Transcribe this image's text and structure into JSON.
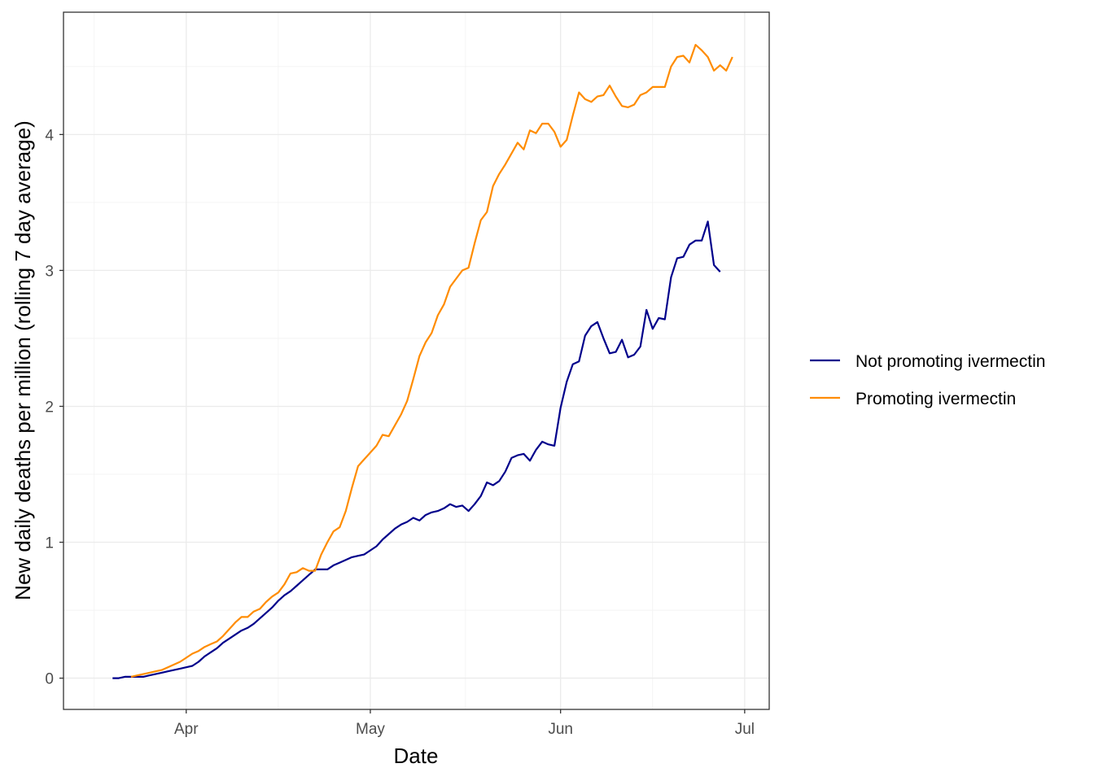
{
  "chart_data": {
    "type": "line",
    "xlabel": "Date",
    "ylabel": "New daily deaths per million (rolling 7 day average)",
    "x_start": "2020-03-20",
    "x_ticks": [
      {
        "label": "Apr",
        "date": "2020-04-01"
      },
      {
        "label": "May",
        "date": "2020-05-01"
      },
      {
        "label": "Jun",
        "date": "2020-06-01"
      },
      {
        "label": "Jul",
        "date": "2020-07-01"
      }
    ],
    "y_ticks": [
      0,
      1,
      2,
      3,
      4
    ],
    "xlim": [
      "2020-03-12",
      "2020-07-05"
    ],
    "ylim": [
      -0.23,
      4.9
    ],
    "grid": true,
    "legend_position": "right",
    "series": [
      {
        "name": "Not promoting ivermectin",
        "color": "#00008b",
        "values": [
          0.0,
          0.0,
          0.01,
          0.01,
          0.01,
          0.01,
          0.02,
          0.03,
          0.04,
          0.05,
          0.06,
          0.07,
          0.08,
          0.09,
          0.12,
          0.16,
          0.19,
          0.22,
          0.26,
          0.29,
          0.32,
          0.35,
          0.37,
          0.4,
          0.44,
          0.48,
          0.52,
          0.57,
          0.61,
          0.64,
          0.68,
          0.72,
          0.76,
          0.8,
          0.8,
          0.8,
          0.83,
          0.85,
          0.87,
          0.89,
          0.9,
          0.91,
          0.94,
          0.97,
          1.02,
          1.06,
          1.1,
          1.13,
          1.15,
          1.18,
          1.16,
          1.2,
          1.22,
          1.23,
          1.25,
          1.28,
          1.26,
          1.27,
          1.23,
          1.28,
          1.34,
          1.44,
          1.42,
          1.45,
          1.52,
          1.62,
          1.64,
          1.65,
          1.6,
          1.68,
          1.74,
          1.72,
          1.71,
          1.99,
          2.18,
          2.31,
          2.33,
          2.52,
          2.59,
          2.62,
          2.5,
          2.39,
          2.4,
          2.49,
          2.36,
          2.38,
          2.44,
          2.71,
          2.57,
          2.65,
          2.64,
          2.95,
          3.09,
          3.1,
          3.19,
          3.22,
          3.22,
          3.36,
          3.04,
          2.99
        ]
      },
      {
        "name": "Promoting ivermectin",
        "color": "#ff8c00",
        "values": [
          null,
          null,
          null,
          0.01,
          0.02,
          0.03,
          0.04,
          0.05,
          0.06,
          0.08,
          0.1,
          0.12,
          0.15,
          0.18,
          0.2,
          0.23,
          0.25,
          0.27,
          0.31,
          0.36,
          0.41,
          0.45,
          0.45,
          0.49,
          0.51,
          0.56,
          0.6,
          0.63,
          0.69,
          0.77,
          0.78,
          0.81,
          0.79,
          0.79,
          0.91,
          1.0,
          1.08,
          1.11,
          1.23,
          1.4,
          1.56,
          1.61,
          1.66,
          1.71,
          1.79,
          1.78,
          1.86,
          1.94,
          2.04,
          2.2,
          2.37,
          2.47,
          2.54,
          2.67,
          2.75,
          2.88,
          2.94,
          3.0,
          3.02,
          3.2,
          3.37,
          3.43,
          3.62,
          3.71,
          3.78,
          3.86,
          3.94,
          3.89,
          4.03,
          4.01,
          4.08,
          4.08,
          4.02,
          3.91,
          3.96,
          4.14,
          4.31,
          4.26,
          4.24,
          4.28,
          4.29,
          4.36,
          4.28,
          4.21,
          4.2,
          4.22,
          4.29,
          4.31,
          4.35,
          4.35,
          4.35,
          4.5,
          4.57,
          4.58,
          4.53,
          4.66,
          4.62,
          4.57,
          4.47,
          4.51,
          4.47,
          4.57
        ]
      }
    ]
  }
}
